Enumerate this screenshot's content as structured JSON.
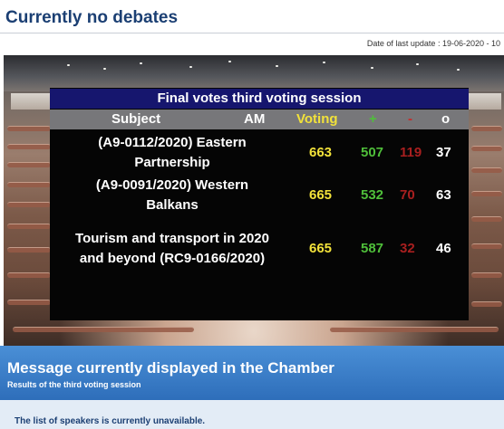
{
  "page": {
    "title": "Currently no debates",
    "last_update_text": "Date of last update : 19-06-2020 - 10"
  },
  "board": {
    "title": "Final votes third voting session",
    "headers": {
      "subject": "Subject",
      "am": "AM",
      "voting": "Voting",
      "plus": "+",
      "minus": "-",
      "abstention": "o"
    },
    "rows": [
      {
        "subject_line1": "(A9-0112/2020) Eastern",
        "subject_line2": "Partnership",
        "am": "",
        "voting": "663",
        "for": "507",
        "against": "119",
        "abstention": "37"
      },
      {
        "subject_line1": "(A9-0091/2020) Western",
        "subject_line2": "Balkans",
        "am": "",
        "voting": "665",
        "for": "532",
        "against": "70",
        "abstention": "63"
      },
      {
        "subject_line1": "Tourism and transport in 2020",
        "subject_line2": "and beyond (RC9-0166/2020)",
        "am": "",
        "voting": "665",
        "for": "587",
        "against": "32",
        "abstention": "46"
      }
    ]
  },
  "message_panel": {
    "title": "Message currently displayed in the Chamber",
    "subtitle": "Results of the third voting session"
  },
  "speakers_panel": {
    "text": "The list of speakers is currently unavailable."
  },
  "colors": {
    "title_blue": "#1b3f73",
    "board_title_bg": "#16166e",
    "voting_yellow": "#f2e23a",
    "for_green": "#4fbf3a",
    "against_red": "#a81f1f",
    "message_blue": "#2e6eba"
  }
}
